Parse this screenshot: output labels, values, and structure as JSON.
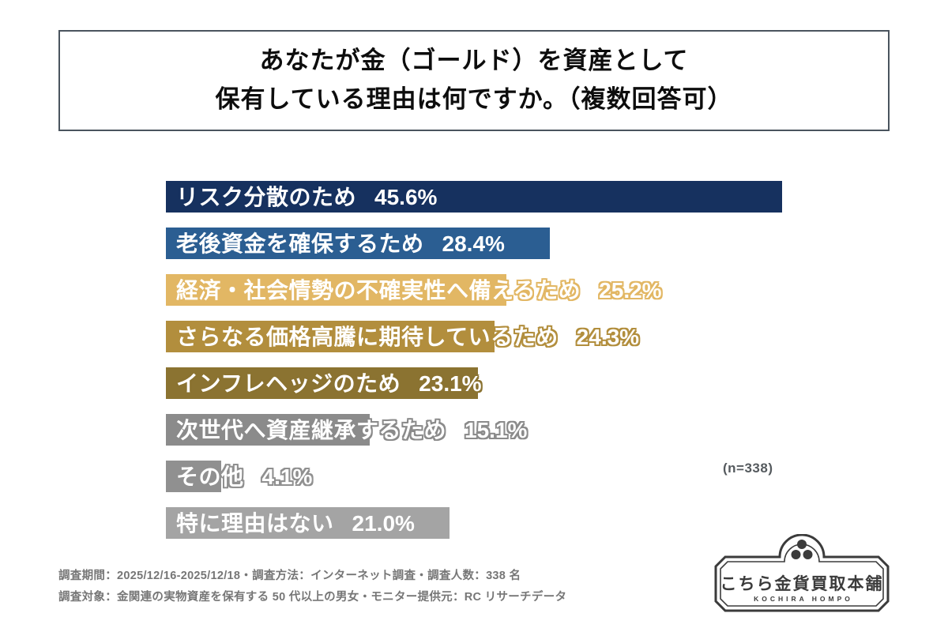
{
  "title": {
    "line1": "あなたが金（ゴールド）を資産として",
    "line2": "保有している理由は何ですか。（複数回答可）"
  },
  "chart_data": {
    "type": "bar",
    "orientation": "horizontal",
    "title": "あなたが金（ゴールド）を資産として保有している理由は何ですか。（複数回答可）",
    "unit": "%",
    "xlim": [
      0,
      50
    ],
    "grid": false,
    "axis_shown": false,
    "sample_size": 338,
    "sample_size_label": "(n=338)",
    "categories": [
      "リスク分散のため",
      "老後資金を確保するため",
      "経済・社会情勢の不確実性へ備えるため",
      "さらなる価格高騰に期待しているため",
      "インフレヘッジのため",
      "次世代へ資産継承するため",
      "その他",
      "特に理由はない"
    ],
    "values": [
      45.6,
      28.4,
      25.2,
      24.3,
      23.1,
      15.1,
      4.1,
      21.0
    ],
    "value_labels": [
      "45.6%",
      "28.4%",
      "25.2%",
      "24.3%",
      "23.1%",
      "15.1%",
      "4.1%",
      "21.0%"
    ],
    "bar_colors": [
      "#16315f",
      "#2b5e92",
      "#e2b764",
      "#b28e3d",
      "#8b7331",
      "#8b8b8b",
      "#909090",
      "#a4a4a4"
    ],
    "label_text_color": "#ffffff"
  },
  "footnotes": {
    "line1": "調査期間：2025/12/16-2025/12/18・調査方法：インターネット調査・調査人数：338 名",
    "line2": "調査対象：金関連の実物資産を保有する 50 代以上の男女・モニター提供元：RC リサーチデータ"
  },
  "logo": {
    "name_jp": "こちら金貨買取本舗",
    "name_en": "KOCHIRA HOMPO",
    "border_color": "#3b3b3b",
    "text_color": "#3b3b3b"
  }
}
